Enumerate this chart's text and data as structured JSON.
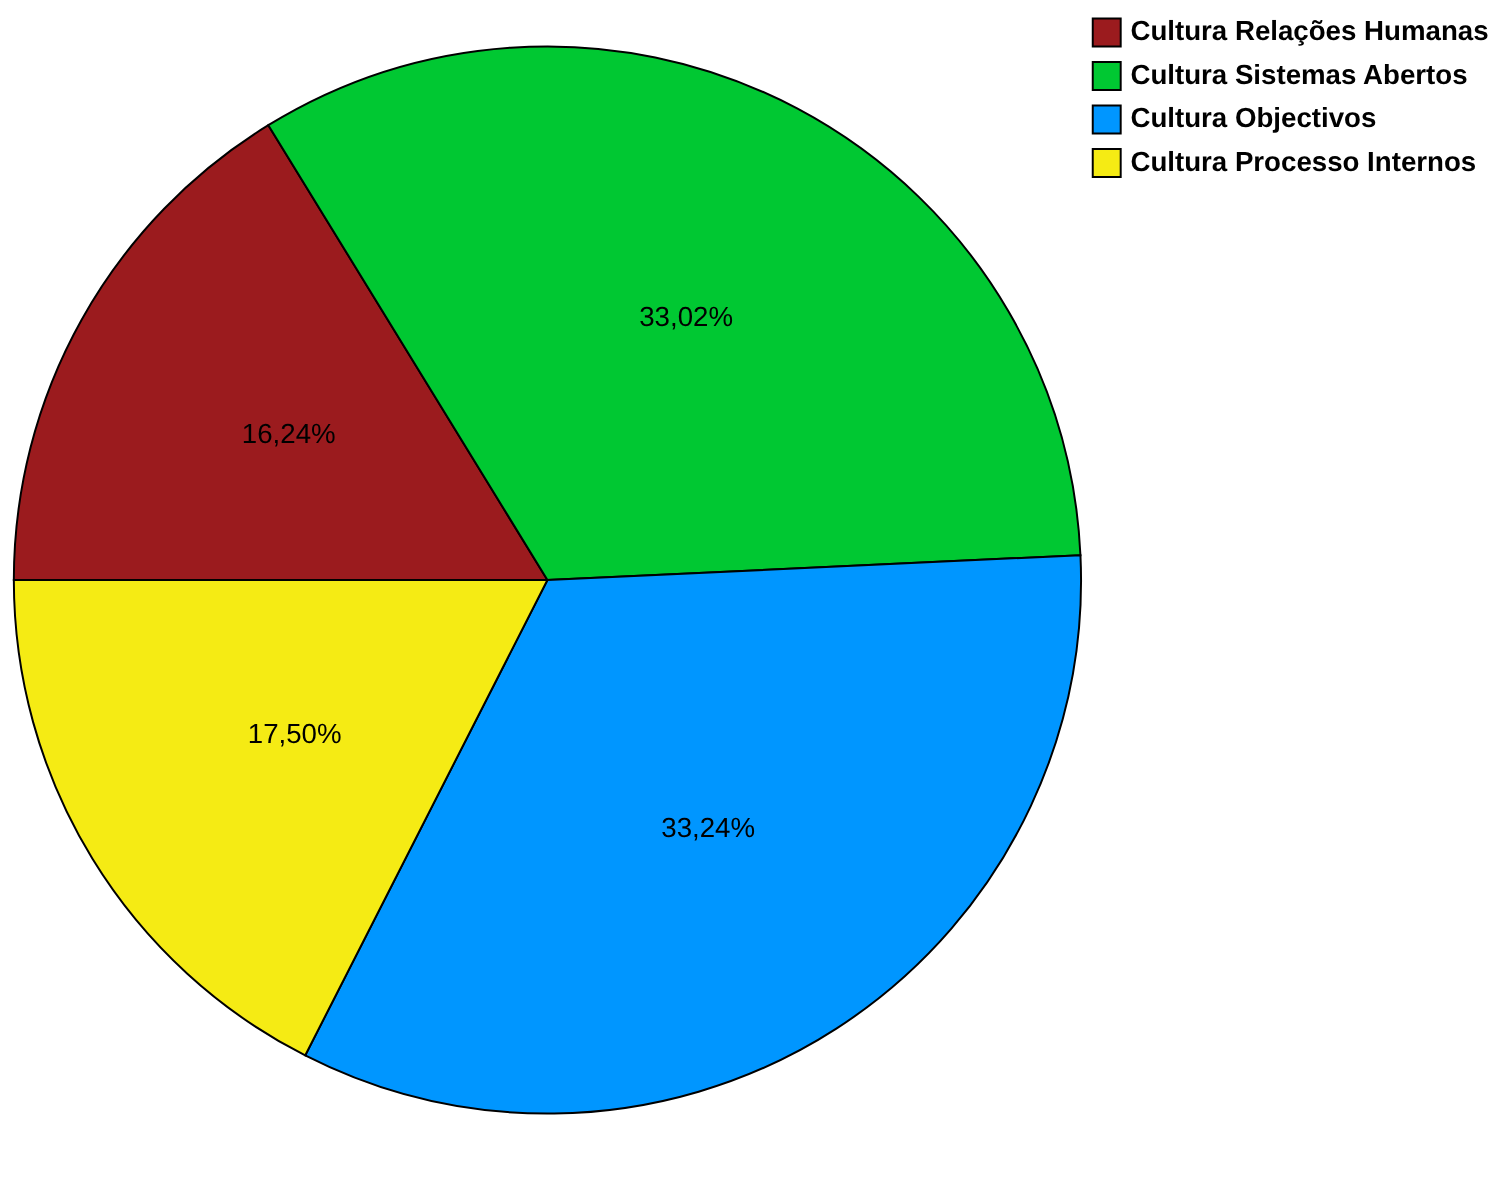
{
  "chart_data": {
    "type": "pie",
    "categories": [
      "Cultura Relações Humanas",
      "Cultura Sistemas Abertos",
      "Cultura Objectivos",
      "Cultura Processo Internos"
    ],
    "values": [
      16.24,
      33.02,
      33.24,
      17.5
    ],
    "value_labels": [
      "16,24%",
      "33,02%",
      "33,24%",
      "17,50%"
    ],
    "colors": [
      "#9b1b1e",
      "#00c832",
      "#0096ff",
      "#f5eb14"
    ],
    "legend": "top right"
  }
}
